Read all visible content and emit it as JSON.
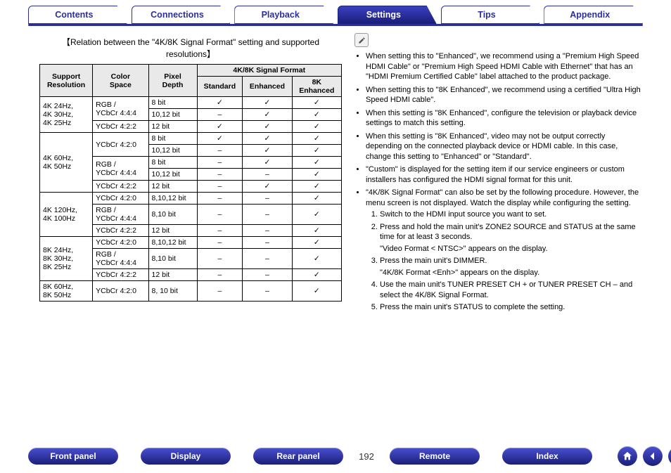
{
  "tabs": [
    {
      "label": "Contents",
      "active": false
    },
    {
      "label": "Connections",
      "active": false
    },
    {
      "label": "Playback",
      "active": false
    },
    {
      "label": "Settings",
      "active": true
    },
    {
      "label": "Tips",
      "active": false
    },
    {
      "label": "Appendix",
      "active": false
    }
  ],
  "caption": "【Relation between the \"4K/8K Signal Format\" setting and supported resolutions】",
  "table": {
    "header_rows": {
      "support": "Support Resolution",
      "color": "Color Space",
      "pixel": "Pixel Depth",
      "group": "4K/8K Signal Format",
      "standard": "Standard",
      "enhanced": "Enhanced",
      "k8": "8K Enhanced"
    },
    "groups": [
      {
        "res": "4K 24Hz, 4K 30Hz, 4K 25Hz",
        "rows": [
          {
            "cs": "RGB / YCbCr 4:4:4",
            "pd": "8 bit",
            "s": "✓",
            "e": "✓",
            "k": "✓",
            "cs_rowspan": 2
          },
          {
            "pd": "10,12 bit",
            "s": "–",
            "e": "✓",
            "k": "✓"
          },
          {
            "cs": "YCbCr 4:2:2",
            "pd": "12 bit",
            "s": "✓",
            "e": "✓",
            "k": "✓"
          }
        ]
      },
      {
        "res": "4K 60Hz, 4K 50Hz",
        "rows": [
          {
            "cs": "YCbCr 4:2:0",
            "pd": "8 bit",
            "s": "✓",
            "e": "✓",
            "k": "✓",
            "cs_rowspan": 2
          },
          {
            "pd": "10,12 bit",
            "s": "–",
            "e": "✓",
            "k": "✓"
          },
          {
            "cs": "RGB / YCbCr 4:4:4",
            "pd": "8 bit",
            "s": "–",
            "e": "✓",
            "k": "✓",
            "cs_rowspan": 2
          },
          {
            "pd": "10,12 bit",
            "s": "–",
            "e": "–",
            "k": "✓"
          },
          {
            "cs": "YCbCr 4:2:2",
            "pd": "12 bit",
            "s": "–",
            "e": "✓",
            "k": "✓"
          }
        ]
      },
      {
        "res": "4K 120Hz, 4K 100Hz",
        "rows": [
          {
            "cs": "YCbCr 4:2:0",
            "pd": "8,10,12 bit",
            "s": "–",
            "e": "–",
            "k": "✓"
          },
          {
            "cs": "RGB / YCbCr 4:4:4",
            "pd": "8,10 bit",
            "s": "–",
            "e": "–",
            "k": "✓"
          },
          {
            "cs": "YCbCr 4:2:2",
            "pd": "12 bit",
            "s": "–",
            "e": "–",
            "k": "✓"
          }
        ]
      },
      {
        "res": "8K 24Hz, 8K 30Hz, 8K 25Hz",
        "rows": [
          {
            "cs": "YCbCr 4:2:0",
            "pd": "8,10,12 bit",
            "s": "–",
            "e": "–",
            "k": "✓"
          },
          {
            "cs": "RGB / YCbCr 4:4:4",
            "pd": "8,10 bit",
            "s": "–",
            "e": "–",
            "k": "✓"
          },
          {
            "cs": "YCbCr 4:2:2",
            "pd": "12 bit",
            "s": "–",
            "e": "–",
            "k": "✓"
          }
        ]
      },
      {
        "res": "8K 60Hz, 8K 50Hz",
        "rows": [
          {
            "cs": "YCbCr 4:2:0",
            "pd": "8, 10 bit",
            "s": "–",
            "e": "–",
            "k": "✓"
          }
        ]
      }
    ]
  },
  "notes": {
    "bullets": [
      "When setting this to \"Enhanced\", we recommend using a \"Premium High Speed HDMI Cable\" or \"Premium High Speed HDMI Cable with Ethernet\" that has an \"HDMI Premium Certified Cable\" label attached to the product package.",
      "When setting this to \"8K Enhanced\", we recommend using a certified \"Ultra High Speed HDMI cable\".",
      "When this setting is \"8K Enhanced\", configure the television or playback device settings to match this setting.",
      "When this setting is \"8K Enhanced\", video may not be output correctly depending on the connected playback device or HDMI cable. In this case, change this setting to \"Enhanced\" or \"Standard\".",
      "\"Custom\" is displayed for the setting item if our service engineers or custom installers has configured the HDMI signal format for this unit.",
      "\"4K/8K Signal Format\" can also be set by the following procedure. However, the menu screen is not displayed. Watch the display while configuring the setting."
    ],
    "steps": [
      {
        "text": "Switch to the HDMI input source you want to set."
      },
      {
        "text": "Press and hold the main unit's ZONE2 SOURCE and STATUS at the same time for at least 3 seconds.",
        "sub": "\"Video Format < NTSC>\" appears on the display."
      },
      {
        "text": "Press the main unit's DIMMER.",
        "sub": "\"4K/8K Format <Enh>\" appears on the display."
      },
      {
        "text": "Use the main unit's TUNER PRESET CH + or TUNER PRESET CH – and select the 4K/8K Signal Format."
      },
      {
        "text": "Press the main unit's STATUS to complete the setting."
      }
    ]
  },
  "bottom": {
    "pills": [
      "Front panel",
      "Display",
      "Rear panel"
    ],
    "page": "192",
    "pills2": [
      "Remote",
      "Index"
    ]
  }
}
